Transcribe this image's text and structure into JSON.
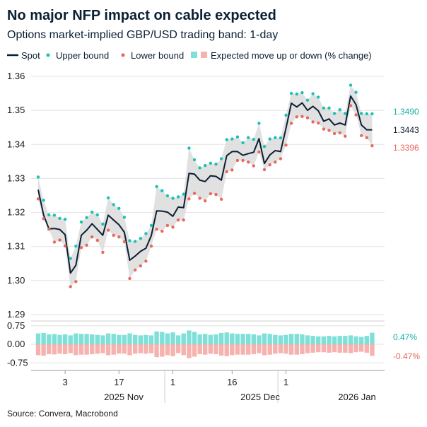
{
  "title": "No major NFP impact on cable expected",
  "subtitle": "Options market-implied GBP/USD trading band: 1-day",
  "source": "Source: Convera, Macrobond",
  "colors": {
    "spot": "#0b1f33",
    "upper": "#19c2b4",
    "lower": "#e8685e",
    "band": "#dcdcdc",
    "bar_up": "#7fe0d8",
    "bar_down": "#f4b3ae",
    "label_upper": "#19b0a4",
    "label_lower": "#e8685e"
  },
  "legend": {
    "spot": "Spot",
    "upper": "Upper bound",
    "lower": "Lower bound",
    "expected": "Expected move up or down (% change)"
  },
  "end_labels": {
    "upper": "1.3490",
    "spot": "1.3443",
    "lower": "1.3396",
    "pct_up": "0.47%",
    "pct_down": "-0.47%"
  },
  "x_labels": {
    "day_ticks": [
      "3",
      "17",
      "1",
      "16",
      "1"
    ],
    "month_labels": [
      "2025 Nov",
      "2025 Dec",
      "2026 Jan"
    ]
  },
  "chart_data": [
    {
      "type": "line",
      "title": "Options market-implied GBP/USD trading band: 1-day",
      "ylim": [
        1.29,
        1.36
      ],
      "yticks": [
        "1.29",
        "1.30",
        "1.31",
        "1.32",
        "1.33",
        "1.34",
        "1.35",
        "1.36"
      ],
      "x_index": [
        0,
        1,
        2,
        3,
        4,
        5,
        6,
        7,
        8,
        9,
        10,
        11,
        12,
        13,
        14,
        15,
        16,
        17,
        18,
        19,
        20,
        21,
        22,
        23,
        24,
        25,
        26,
        27,
        28,
        29,
        30,
        31,
        32,
        33,
        34,
        35,
        36,
        37,
        38,
        39,
        40,
        41,
        42,
        43,
        44,
        45,
        46,
        47,
        48,
        49,
        50,
        51,
        52,
        53,
        54,
        55,
        56,
        57,
        58,
        59,
        60,
        61,
        62
      ],
      "series": [
        {
          "name": "Spot",
          "values": [
            1.3267,
            1.3193,
            1.3152,
            1.3153,
            1.315,
            1.3135,
            1.3022,
            1.3045,
            1.3133,
            1.3148,
            1.3167,
            1.315,
            1.3133,
            1.3192,
            1.3178,
            1.3164,
            1.3142,
            1.306,
            1.3072,
            1.3086,
            1.3095,
            1.3132,
            1.3205,
            1.3204,
            1.3201,
            1.3189,
            1.3216,
            1.3214,
            1.3315,
            1.3313,
            1.3295,
            1.3291,
            1.3308,
            1.3306,
            1.3295,
            1.3367,
            1.3379,
            1.3379,
            1.3368,
            1.3373,
            1.3377,
            1.3417,
            1.3344,
            1.3369,
            1.3382,
            1.3379,
            1.3447,
            1.3521,
            1.351,
            1.3522,
            1.35,
            1.3512,
            1.3499,
            1.3468,
            1.3475,
            1.3457,
            1.3463,
            1.3457,
            1.3542,
            1.3517,
            1.3457,
            1.3443,
            1.3443
          ]
        },
        {
          "name": "Upper bound",
          "values": [
            1.3304,
            1.3236,
            1.3193,
            1.3192,
            1.3183,
            1.318,
            1.3065,
            1.3101,
            1.3172,
            1.3185,
            1.3201,
            1.3193,
            1.3166,
            1.3243,
            1.3223,
            1.3212,
            1.3186,
            1.3117,
            1.3115,
            1.3124,
            1.3138,
            1.3162,
            1.3276,
            1.3264,
            1.3249,
            1.3242,
            1.3246,
            1.3254,
            1.3389,
            1.3355,
            1.3331,
            1.3338,
            1.3345,
            1.3342,
            1.3358,
            1.3414,
            1.3416,
            1.3422,
            1.3405,
            1.342,
            1.3415,
            1.3462,
            1.3394,
            1.3416,
            1.342,
            1.3419,
            1.3486,
            1.355,
            1.3548,
            1.3552,
            1.353,
            1.3549,
            1.3539,
            1.3507,
            1.3507,
            1.3491,
            1.3502,
            1.3491,
            1.3574,
            1.3553,
            1.3491,
            1.349,
            1.349
          ]
        },
        {
          "name": "Lower bound",
          "values": [
            1.324,
            1.3182,
            1.3151,
            1.3113,
            1.3119,
            1.3102,
            1.2982,
            1.2997,
            1.3097,
            1.3104,
            1.3128,
            1.3118,
            1.3083,
            1.3148,
            1.3133,
            1.3128,
            1.3114,
            1.3006,
            1.3031,
            1.3043,
            1.3057,
            1.3101,
            1.3151,
            1.3145,
            1.3162,
            1.3157,
            1.3178,
            1.3178,
            1.324,
            1.3256,
            1.3242,
            1.3234,
            1.3255,
            1.3253,
            1.3239,
            1.332,
            1.3325,
            1.3353,
            1.3353,
            1.3348,
            1.3337,
            1.3378,
            1.3326,
            1.334,
            1.3348,
            1.3358,
            1.3398,
            1.3462,
            1.3481,
            1.3482,
            1.3478,
            1.3466,
            1.3463,
            1.3445,
            1.3441,
            1.3432,
            1.3434,
            1.3424,
            1.3514,
            1.3487,
            1.3426,
            1.342,
            1.3396
          ]
        }
      ]
    },
    {
      "type": "bar",
      "title": "Expected move up or down (% change)",
      "ylim": [
        -1.0,
        1.0
      ],
      "yticks": [
        "0.75",
        "0.00",
        "-0.75"
      ],
      "series": [
        {
          "name": "Expected move up (%)",
          "values": [
            0.44,
            0.46,
            0.4,
            0.41,
            0.38,
            0.4,
            0.36,
            0.44,
            0.42,
            0.42,
            0.4,
            0.38,
            0.36,
            0.44,
            0.42,
            0.38,
            0.38,
            0.44,
            0.38,
            0.36,
            0.38,
            0.36,
            0.52,
            0.5,
            0.44,
            0.48,
            0.36,
            0.44,
            0.56,
            0.5,
            0.4,
            0.42,
            0.38,
            0.4,
            0.46,
            0.48,
            0.44,
            0.42,
            0.42,
            0.42,
            0.4,
            0.36,
            0.44,
            0.42,
            0.38,
            0.36,
            0.38,
            0.42,
            0.42,
            0.4,
            0.36,
            0.34,
            0.32,
            0.32,
            0.34,
            0.32,
            0.34,
            0.34,
            0.36,
            0.32,
            0.3,
            0.34,
            0.47
          ]
        },
        {
          "name": "Expected move down (%)",
          "values": [
            -0.44,
            -0.46,
            -0.4,
            -0.41,
            -0.38,
            -0.4,
            -0.36,
            -0.44,
            -0.42,
            -0.42,
            -0.4,
            -0.38,
            -0.36,
            -0.44,
            -0.42,
            -0.38,
            -0.38,
            -0.44,
            -0.38,
            -0.36,
            -0.38,
            -0.36,
            -0.52,
            -0.5,
            -0.44,
            -0.48,
            -0.36,
            -0.44,
            -0.56,
            -0.5,
            -0.4,
            -0.42,
            -0.38,
            -0.4,
            -0.46,
            -0.48,
            -0.44,
            -0.42,
            -0.42,
            -0.42,
            -0.4,
            -0.36,
            -0.44,
            -0.42,
            -0.38,
            -0.36,
            -0.38,
            -0.42,
            -0.42,
            -0.4,
            -0.36,
            -0.34,
            -0.32,
            -0.32,
            -0.34,
            -0.32,
            -0.34,
            -0.34,
            -0.36,
            -0.32,
            -0.3,
            -0.34,
            -0.47
          ]
        }
      ]
    }
  ]
}
